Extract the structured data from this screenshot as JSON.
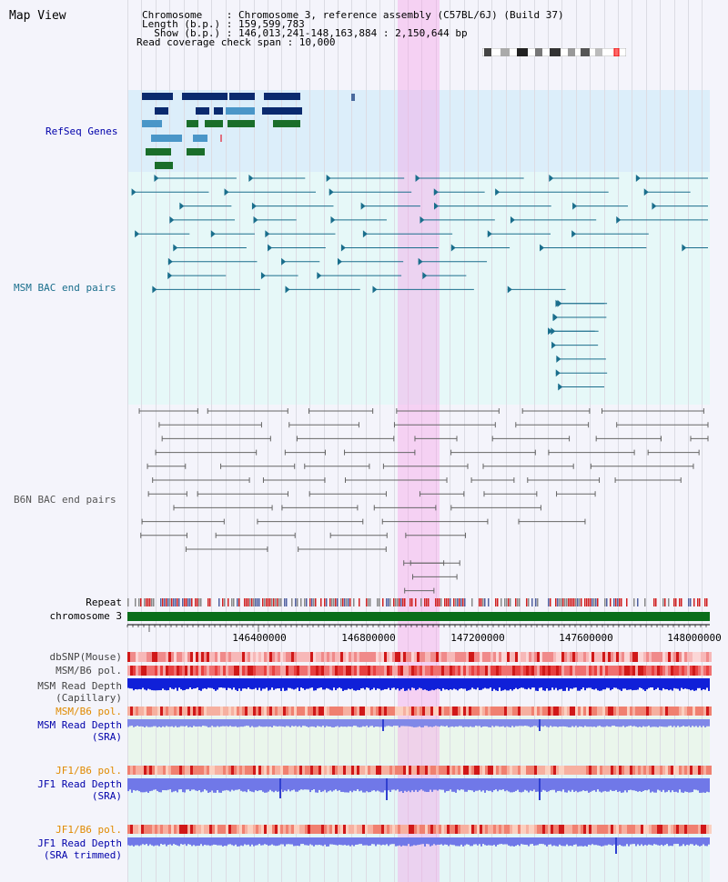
{
  "title": "Map View",
  "info": {
    "chromosome": "Chromosome    : Chromosome 3, reference assembly (C57BL/6J) (Build 37)",
    "length": "Length (b.p.) : 159,599,783",
    "show": "  Show (b.p.) : 146,013,241-148,163,884 : 2,150,644 bp",
    "span": "Read coverage check span : 10,000"
  },
  "tracks": {
    "refseq": "RefSeq Genes",
    "msm_bac": "MSM BAC end pairs",
    "b6n_bac": "B6N BAC end pairs",
    "repeat": "Repeat",
    "chromosome": "chromosome 3",
    "dbsnp": "dbSNP(Mouse)",
    "msm_b6_pol": "MSM/B6 pol.",
    "msm_read_depth_cap": "MSM Read Depth\n(Capillary)",
    "msm_b6_pol2": "MSM/B6 pol.",
    "msm_read_depth_sra": "MSM Read Depth\n(SRA)",
    "jf1_b6_pol": "JF1/B6 pol.",
    "jf1_read_depth_sra": "JF1 Read Depth\n(SRA)",
    "jf1_b6_pol2": "JF1/B6 pol.",
    "jf1_read_depth_trim": "JF1 Read Depth\n(SRA trimmed)"
  },
  "axis_ticks": [
    "146400000",
    "146800000",
    "147200000",
    "147600000",
    "148000000"
  ],
  "colors": {
    "refseq_bg": "#dceefa",
    "msm_bac_bg": "#e6f8f8",
    "highlight": "#f6a0e8",
    "chromosome_bar": "#0a6e1a",
    "msm_color": "#1a6e8c",
    "b6n_color": "#666666",
    "label_blue": "#0000aa",
    "label_orange": "#e08a00"
  }
}
